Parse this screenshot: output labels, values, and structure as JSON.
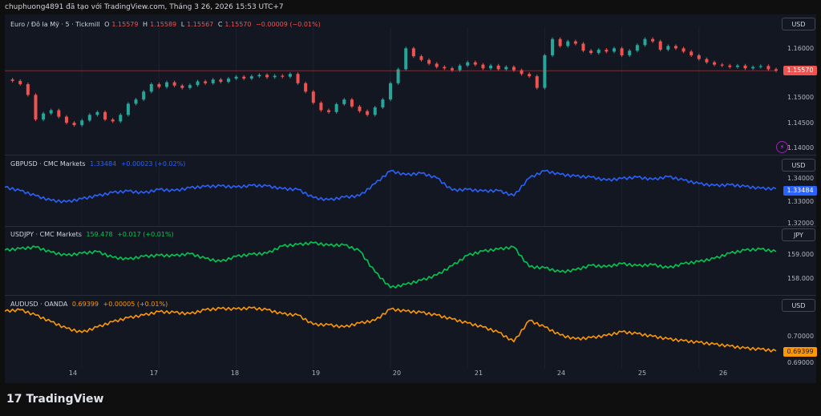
{
  "header": {
    "text": "chuphuong4891 đã tạo với TradingView.com, Tháng 3 26, 2026 15:53 UTC+7"
  },
  "brand": {
    "name": "TradingView",
    "mark": "17"
  },
  "colors": {
    "eurusd_up": "#26a69a",
    "eurusd_down": "#ef5350",
    "gbpusd": "#2962ff",
    "usdjpy": "#00c853",
    "audusd": "#ff9800"
  },
  "chart_data": [
    {
      "type": "candlestick",
      "title": "Euro / Đô la Mỹ · 5 · Tickmill",
      "ohlc": {
        "o_label": "O",
        "o": "1.15579",
        "h_label": "H",
        "h": "1.15589",
        "l_label": "L",
        "l": "1.15567",
        "c_label": "C",
        "c": "1.15570",
        "change": "−0.00009 (−0.01%)"
      },
      "unit": "USD",
      "last_price": "1.15570",
      "y_ticks": [
        "1.16000",
        "1.15000",
        "1.14500",
        "1.14000"
      ],
      "ylim": [
        1.1385,
        1.164
      ],
      "series": [
        {
          "x": [
            0,
            2,
            4,
            6,
            8,
            10,
            12,
            14,
            16,
            18,
            20,
            22,
            24,
            26,
            28,
            30,
            32,
            34,
            36,
            38,
            40,
            42,
            44,
            46,
            48,
            50,
            52,
            54,
            56,
            58,
            60,
            62,
            64,
            66,
            68,
            70,
            72,
            74,
            76,
            78,
            80,
            82,
            84,
            86,
            88,
            90,
            92,
            94,
            96,
            98,
            100,
            102,
            104,
            106,
            108,
            110,
            112,
            114,
            116,
            118,
            120,
            122,
            124,
            126,
            128,
            130,
            132,
            134,
            136,
            138,
            140,
            142,
            144,
            146,
            148,
            150,
            152,
            154,
            156,
            158,
            160,
            162,
            164,
            166,
            168,
            170,
            172,
            174,
            176,
            178,
            180,
            182,
            184,
            186,
            188,
            190,
            192,
            194,
            196,
            198,
            200
          ],
          "close": [
            1.1538,
            1.1535,
            1.1528,
            1.1505,
            1.1452,
            1.1465,
            1.1472,
            1.1458,
            1.1445,
            1.144,
            1.145,
            1.1462,
            1.1468,
            1.1452,
            1.1448,
            1.1462,
            1.1486,
            1.1495,
            1.1512,
            1.1528,
            1.1522,
            1.1532,
            1.1525,
            1.152,
            1.1526,
            1.1534,
            1.153,
            1.1538,
            1.1533,
            1.154,
            1.1544,
            1.154,
            1.1545,
            1.1548,
            1.1543,
            1.1546,
            1.1544,
            1.155,
            1.153,
            1.1512,
            1.1488,
            1.1472,
            1.1468,
            1.1485,
            1.1495,
            1.148,
            1.147,
            1.1462,
            1.1478,
            1.1495,
            1.153,
            1.156,
            1.1605,
            1.1588,
            1.158,
            1.1572,
            1.1565,
            1.1562,
            1.1558,
            1.1568,
            1.1575,
            1.157,
            1.1562,
            1.1568,
            1.156,
            1.1565,
            1.1558,
            1.155,
            1.1545,
            1.152,
            1.159,
            1.1625,
            1.161,
            1.162,
            1.1615,
            1.16,
            1.1595,
            1.1602,
            1.1598,
            1.1605,
            1.159,
            1.16,
            1.1612,
            1.1625,
            1.162,
            1.1602,
            1.161,
            1.1605,
            1.1598,
            1.159,
            1.1582,
            1.1575,
            1.157,
            1.1568,
            1.1565,
            1.1568,
            1.1562,
            1.1565,
            1.1567,
            1.156,
            1.1557
          ]
        }
      ]
    },
    {
      "type": "line",
      "title": "GBPUSD · CMC Markets",
      "value": "1.33484",
      "change": "+0.00023 (+0.02%)",
      "unit": "USD",
      "last_price": "1.33484",
      "y_ticks": [
        "1.34000",
        "1.33000",
        "1.32000"
      ],
      "ylim": [
        1.3195,
        1.345
      ],
      "series": [
        {
          "name": "GBPUSD",
          "x": [
            0,
            4,
            8,
            12,
            16,
            20,
            24,
            28,
            32,
            36,
            40,
            44,
            48,
            52,
            56,
            60,
            64,
            68,
            72,
            76,
            80,
            84,
            88,
            92,
            96,
            100,
            104,
            108,
            112,
            116,
            120,
            124,
            128,
            132,
            136,
            140,
            144,
            148,
            152,
            156,
            160,
            164,
            168,
            172,
            176,
            180,
            184,
            188,
            192,
            196,
            200
          ],
          "values": [
            1.3355,
            1.334,
            1.3318,
            1.3298,
            1.3292,
            1.3305,
            1.3318,
            1.3332,
            1.3338,
            1.333,
            1.3345,
            1.334,
            1.3352,
            1.3358,
            1.336,
            1.3355,
            1.3362,
            1.336,
            1.3348,
            1.3345,
            1.331,
            1.33,
            1.3312,
            1.3318,
            1.337,
            1.3425,
            1.3408,
            1.3415,
            1.3395,
            1.3342,
            1.3345,
            1.3338,
            1.334,
            1.3318,
            1.3395,
            1.3425,
            1.341,
            1.3402,
            1.3398,
            1.3385,
            1.3392,
            1.3398,
            1.3388,
            1.34,
            1.3385,
            1.337,
            1.3362,
            1.3365,
            1.3358,
            1.335,
            1.3348
          ]
        }
      ]
    },
    {
      "type": "line",
      "title": "USDJPY · CMC Markets",
      "value": "159.478",
      "change": "+0.017 (+0.01%)",
      "unit": "JPY",
      "y_ticks": [
        "159.000",
        "158.000"
      ],
      "ylim": [
        157.55,
        160.25
      ],
      "series": [
        {
          "name": "USDJPY",
          "x": [
            0,
            4,
            8,
            12,
            16,
            20,
            24,
            28,
            32,
            36,
            40,
            44,
            48,
            52,
            56,
            60,
            64,
            68,
            72,
            76,
            80,
            84,
            88,
            92,
            96,
            100,
            104,
            108,
            112,
            116,
            120,
            124,
            128,
            132,
            136,
            140,
            144,
            148,
            152,
            156,
            160,
            164,
            168,
            172,
            176,
            180,
            184,
            188,
            192,
            196,
            200
          ],
          "values": [
            159.55,
            159.62,
            159.7,
            159.45,
            159.3,
            159.4,
            159.48,
            159.2,
            159.12,
            159.25,
            159.3,
            159.28,
            159.38,
            159.15,
            159.0,
            159.25,
            159.35,
            159.4,
            159.75,
            159.82,
            159.9,
            159.78,
            159.8,
            159.52,
            158.5,
            157.75,
            157.9,
            158.1,
            158.35,
            158.8,
            159.3,
            159.5,
            159.6,
            159.7,
            158.75,
            158.7,
            158.5,
            158.6,
            158.82,
            158.75,
            158.9,
            158.8,
            158.85,
            158.7,
            158.9,
            159.0,
            159.15,
            159.4,
            159.55,
            159.6,
            159.48
          ]
        }
      ]
    },
    {
      "type": "line",
      "title": "AUDUSD · OANDA",
      "value": "0.69399",
      "change": "+0.00005 (+0.01%)",
      "unit": "USD",
      "last_price": "0.69399",
      "y_ticks": [
        "0.70000",
        "0.69000"
      ],
      "ylim": [
        0.6885,
        0.7115
      ],
      "series": [
        {
          "name": "AUDUSD",
          "x": [
            0,
            4,
            8,
            12,
            16,
            20,
            24,
            28,
            32,
            36,
            40,
            44,
            48,
            52,
            56,
            60,
            64,
            68,
            72,
            76,
            80,
            84,
            88,
            92,
            96,
            100,
            104,
            108,
            112,
            116,
            120,
            124,
            128,
            132,
            136,
            140,
            144,
            148,
            152,
            156,
            160,
            164,
            168,
            172,
            176,
            180,
            184,
            188,
            192,
            196,
            200
          ],
          "values": [
            0.709,
            0.7095,
            0.7075,
            0.705,
            0.7025,
            0.701,
            0.703,
            0.705,
            0.7065,
            0.7075,
            0.7088,
            0.7085,
            0.708,
            0.7095,
            0.71,
            0.7098,
            0.7102,
            0.7095,
            0.708,
            0.7075,
            0.704,
            0.7038,
            0.703,
            0.7045,
            0.7055,
            0.7098,
            0.709,
            0.7085,
            0.7075,
            0.706,
            0.7045,
            0.703,
            0.701,
            0.6975,
            0.7055,
            0.703,
            0.7,
            0.6985,
            0.699,
            0.6998,
            0.7012,
            0.7005,
            0.6995,
            0.6985,
            0.6978,
            0.6972,
            0.6965,
            0.6958,
            0.695,
            0.6946,
            0.694
          ]
        }
      ]
    }
  ],
  "x_axis": {
    "labels": [
      "14",
      "17",
      "18",
      "19",
      "20",
      "21",
      "24",
      "25",
      "26"
    ]
  }
}
